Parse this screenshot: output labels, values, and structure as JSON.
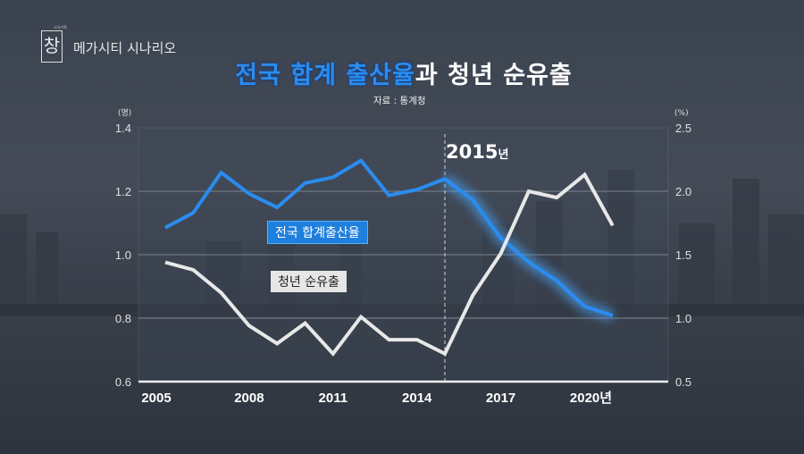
{
  "header": {
    "logo_text": "창",
    "logo_small_text": "시사기획",
    "program_title": "메가시티 시나리오",
    "title_blue": "전국 합계 출산율",
    "title_white": "과 청년 순유출",
    "source": "자료 : 통계청"
  },
  "chart_data": {
    "type": "line",
    "x": [
      2005,
      2006,
      2007,
      2008,
      2009,
      2010,
      2011,
      2012,
      2013,
      2014,
      2015,
      2016,
      2017,
      2018,
      2019,
      2020,
      2021
    ],
    "x_tick_labels": [
      "2005",
      "2008",
      "2011",
      "2014",
      "2017",
      "2020년"
    ],
    "x_tick_values": [
      2005,
      2008,
      2011,
      2014,
      2017,
      2020
    ],
    "left_axis": {
      "unit": "(명)",
      "ylim": [
        0.6,
        1.4
      ],
      "ticks": [
        "1.4",
        "1.2",
        "1.0",
        "0.8",
        "0.6"
      ]
    },
    "right_axis": {
      "unit": "(%)",
      "ylim": [
        0.5,
        2.5
      ],
      "ticks": [
        "2.5",
        "2.0",
        "1.5",
        "1.0",
        "0.5"
      ]
    },
    "series": [
      {
        "name": "전국 합계출산율",
        "axis": "left",
        "color": "#2a8cf0",
        "values": [
          1.085,
          1.132,
          1.259,
          1.192,
          1.149,
          1.226,
          1.244,
          1.297,
          1.187,
          1.205,
          1.239,
          1.172,
          1.052,
          0.977,
          0.918,
          0.837,
          0.808
        ]
      },
      {
        "name": "청년 순유출",
        "axis": "right",
        "color": "#e8e8e8",
        "values": [
          1.44,
          1.38,
          1.2,
          0.94,
          0.8,
          0.96,
          0.72,
          1.01,
          0.83,
          0.83,
          0.72,
          1.18,
          1.51,
          2.0,
          1.95,
          2.13,
          1.73
        ]
      }
    ],
    "annotation": {
      "x": 2015,
      "label": "2015",
      "suffix": "년",
      "line": "dashed"
    },
    "grid": "horizontal",
    "legend": "inline callouts"
  }
}
